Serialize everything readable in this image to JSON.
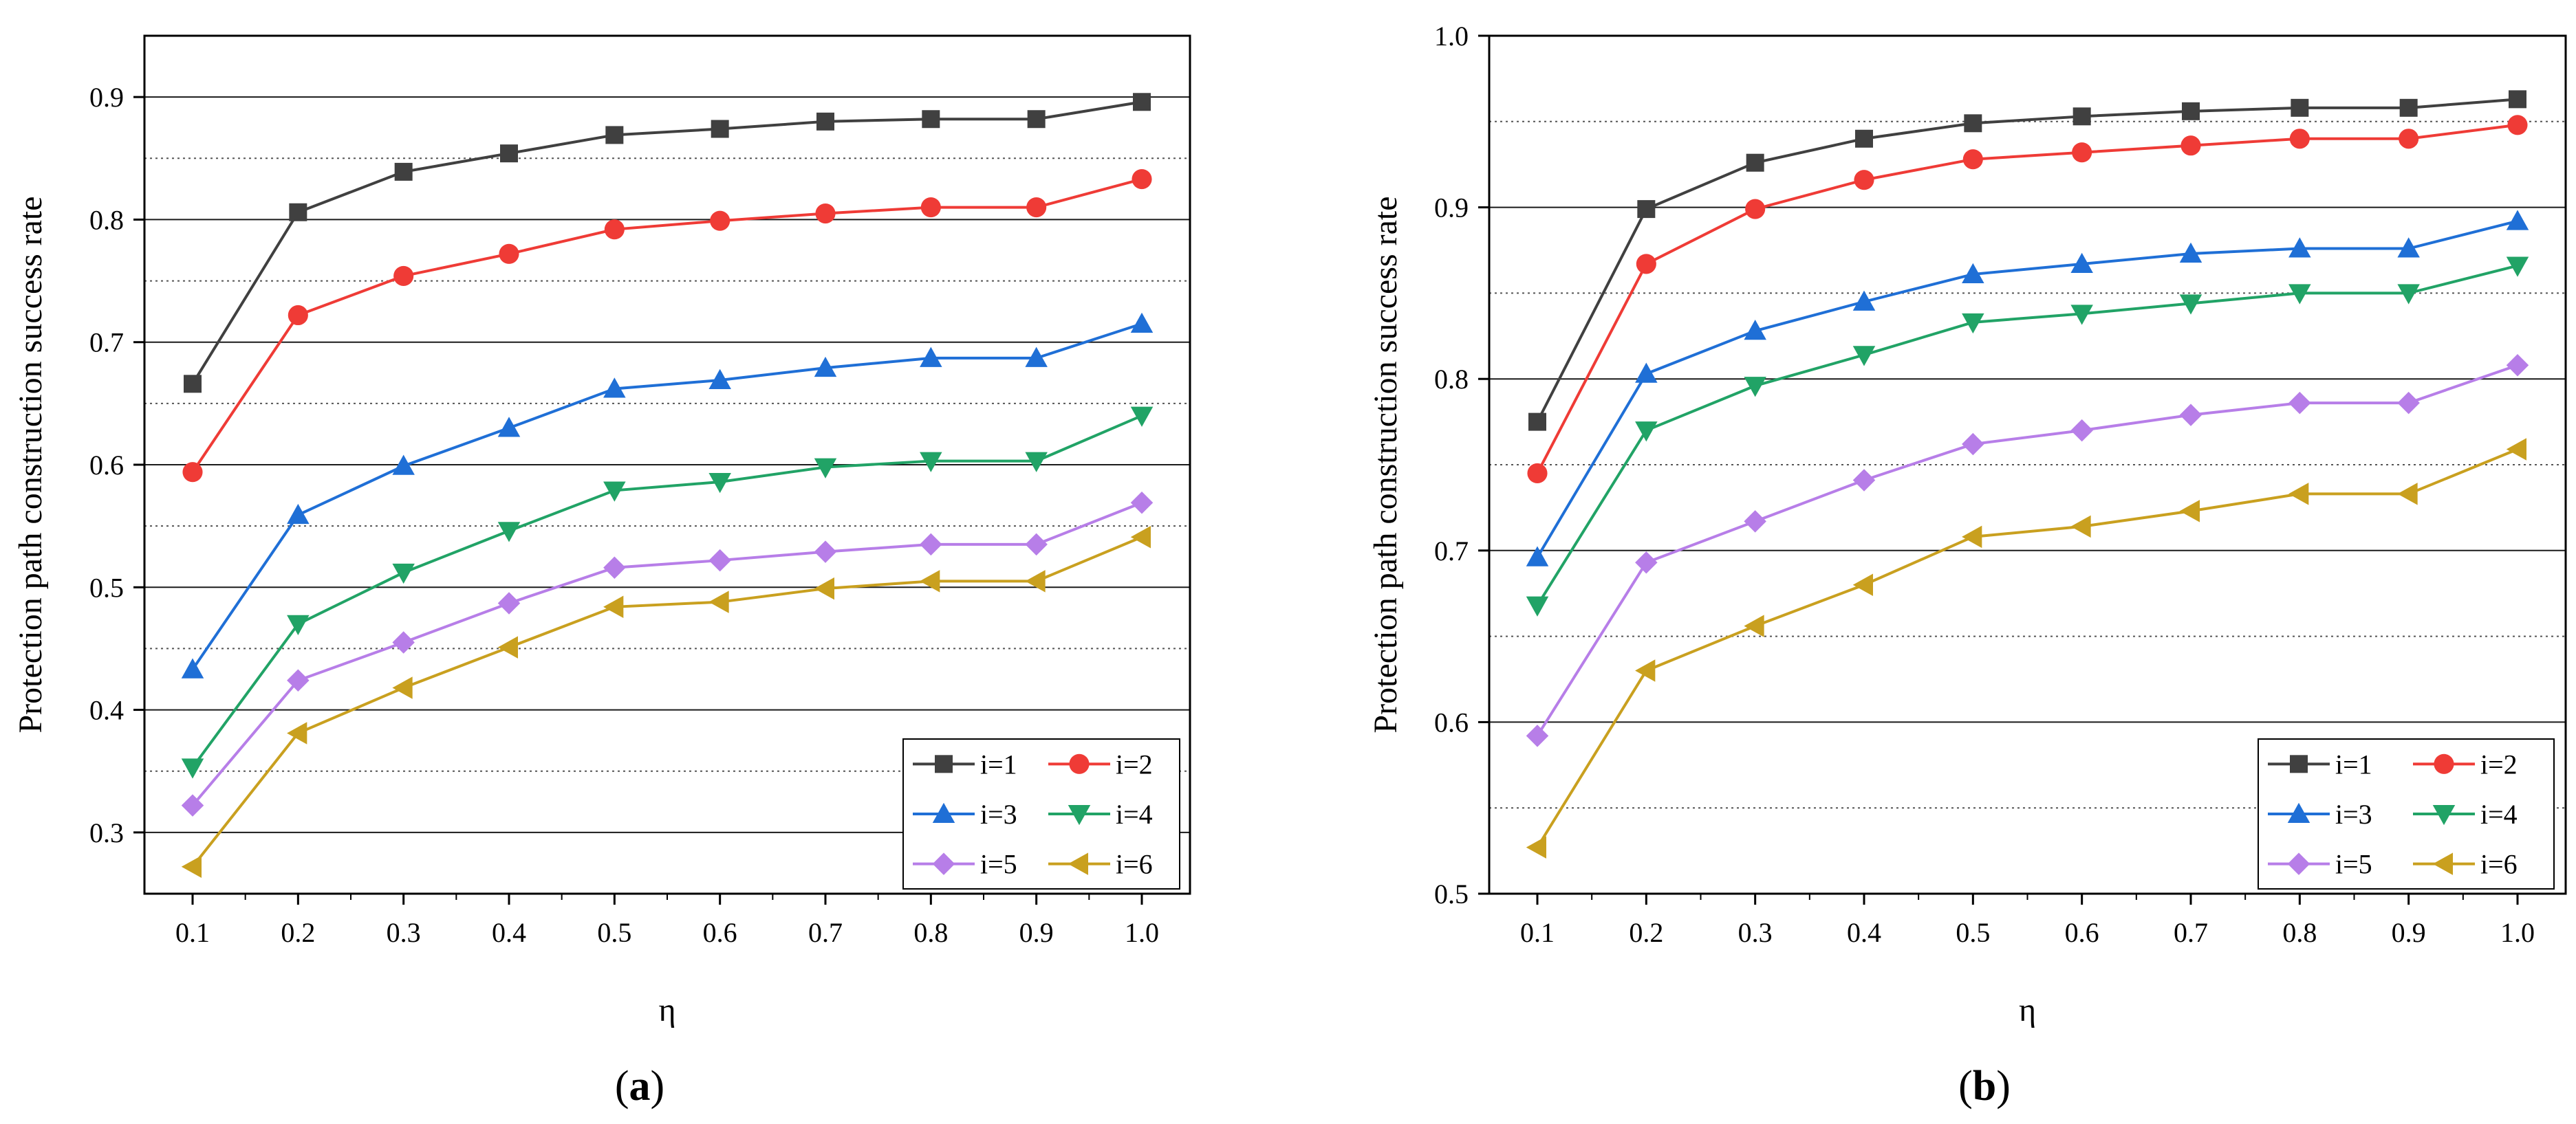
{
  "chart_data": [
    {
      "type": "line",
      "panel_label": "a",
      "xlabel": "η",
      "ylabel": "Protection path construction success rate",
      "x": [
        0.1,
        0.2,
        0.3,
        0.4,
        0.5,
        0.6,
        0.7,
        0.8,
        0.9,
        1.0
      ],
      "x_tick_labels": [
        "0.1",
        "0.2",
        "0.3",
        "0.4",
        "0.5",
        "0.6",
        "0.7",
        "0.8",
        "0.9",
        "1.0"
      ],
      "ylim": [
        0.25,
        0.95
      ],
      "y_ticks": [
        0.3,
        0.4,
        0.5,
        0.6,
        0.7,
        0.8,
        0.9
      ],
      "y_tick_labels": [
        "0.3",
        "0.4",
        "0.5",
        "0.6",
        "0.7",
        "0.8",
        "0.9"
      ],
      "minor_grid": [
        0.35,
        0.45,
        0.55,
        0.65,
        0.75,
        0.85
      ],
      "legend_position": "bottom-right",
      "series": [
        {
          "name": "i=1",
          "color": "#404040",
          "marker": "square",
          "values": [
            0.666,
            0.806,
            0.839,
            0.854,
            0.869,
            0.874,
            0.88,
            0.882,
            0.882,
            0.896
          ]
        },
        {
          "name": "i=2",
          "color": "#ef3b36",
          "marker": "circle",
          "values": [
            0.594,
            0.722,
            0.754,
            0.772,
            0.792,
            0.799,
            0.805,
            0.81,
            0.81,
            0.833
          ]
        },
        {
          "name": "i=3",
          "color": "#1f6fd6",
          "marker": "triangle-up",
          "values": [
            0.433,
            0.559,
            0.599,
            0.63,
            0.662,
            0.669,
            0.679,
            0.687,
            0.687,
            0.715
          ]
        },
        {
          "name": "i=4",
          "color": "#21a366",
          "marker": "triangle-down",
          "values": [
            0.353,
            0.47,
            0.512,
            0.546,
            0.579,
            0.586,
            0.598,
            0.603,
            0.603,
            0.64
          ]
        },
        {
          "name": "i=5",
          "color": "#b77ee8",
          "marker": "diamond",
          "values": [
            0.322,
            0.424,
            0.455,
            0.487,
            0.516,
            0.522,
            0.529,
            0.535,
            0.535,
            0.569
          ]
        },
        {
          "name": "i=6",
          "color": "#c9a01f",
          "marker": "triangle-left",
          "values": [
            0.272,
            0.381,
            0.418,
            0.451,
            0.484,
            0.488,
            0.499,
            0.505,
            0.505,
            0.541
          ]
        }
      ]
    },
    {
      "type": "line",
      "panel_label": "b",
      "xlabel": "η",
      "ylabel": "Protection path construction success rate",
      "x": [
        0.1,
        0.2,
        0.3,
        0.4,
        0.5,
        0.6,
        0.7,
        0.8,
        0.9,
        1.0
      ],
      "x_tick_labels": [
        "0.1",
        "0.2",
        "0.3",
        "0.4",
        "0.5",
        "0.6",
        "0.7",
        "0.8",
        "0.9",
        "1.0"
      ],
      "ylim": [
        0.5,
        1.0
      ],
      "y_ticks": [
        0.5,
        0.6,
        0.7,
        0.8,
        0.9,
        1.0
      ],
      "y_tick_labels": [
        "0.5",
        "0.6",
        "0.7",
        "0.8",
        "0.9",
        "1.0"
      ],
      "minor_grid": [
        0.55,
        0.65,
        0.75,
        0.85,
        0.95
      ],
      "legend_position": "bottom-right",
      "series": [
        {
          "name": "i=1",
          "color": "#404040",
          "marker": "square",
          "values": [
            0.775,
            0.899,
            0.926,
            0.94,
            0.949,
            0.953,
            0.956,
            0.958,
            0.958,
            0.963
          ]
        },
        {
          "name": "i=2",
          "color": "#ef3b36",
          "marker": "circle",
          "values": [
            0.745,
            0.867,
            0.899,
            0.916,
            0.928,
            0.932,
            0.936,
            0.94,
            0.94,
            0.948
          ]
        },
        {
          "name": "i=3",
          "color": "#1f6fd6",
          "marker": "triangle-up",
          "values": [
            0.696,
            0.803,
            0.828,
            0.845,
            0.861,
            0.867,
            0.873,
            0.876,
            0.876,
            0.892
          ]
        },
        {
          "name": "i=4",
          "color": "#21a366",
          "marker": "triangle-down",
          "values": [
            0.668,
            0.77,
            0.796,
            0.814,
            0.833,
            0.838,
            0.844,
            0.85,
            0.85,
            0.866
          ]
        },
        {
          "name": "i=5",
          "color": "#b77ee8",
          "marker": "diamond",
          "values": [
            0.592,
            0.693,
            0.717,
            0.741,
            0.762,
            0.77,
            0.779,
            0.786,
            0.786,
            0.808
          ]
        },
        {
          "name": "i=6",
          "color": "#c9a01f",
          "marker": "triangle-left",
          "values": [
            0.527,
            0.63,
            0.656,
            0.68,
            0.708,
            0.714,
            0.723,
            0.733,
            0.733,
            0.759
          ]
        }
      ]
    }
  ]
}
